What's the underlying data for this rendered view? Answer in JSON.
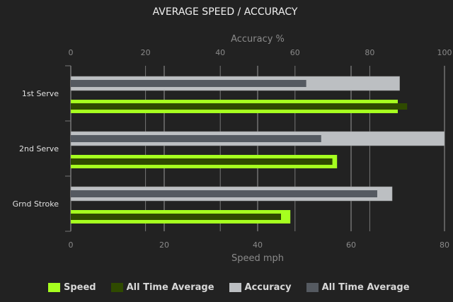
{
  "chart_data": {
    "type": "bar",
    "orientation": "horizontal",
    "title": "AVERAGE SPEED / ACCURACY",
    "categories": [
      "1st Serve",
      "2nd Serve",
      "Grnd Stroke"
    ],
    "top_axis": {
      "label": "Accuracy %",
      "range": [
        0,
        100
      ],
      "ticks": [
        "0",
        "20",
        "40",
        "60",
        "80",
        "100"
      ]
    },
    "bottom_axis": {
      "label": "Speed mph",
      "range": [
        0,
        80
      ],
      "ticks": [
        "0",
        "20",
        "40",
        "60",
        "80"
      ]
    },
    "grid": true,
    "legend_position": "bottom",
    "series": [
      {
        "name": "Speed",
        "axis": "bottom",
        "color": "#a6ff1f",
        "values": [
          70,
          57,
          47
        ]
      },
      {
        "name": "All Time Average",
        "axis": "bottom",
        "color": "#2f4a00",
        "values": [
          72,
          56,
          45
        ]
      },
      {
        "name": "Accuracy",
        "axis": "top",
        "color": "#bcbfc2",
        "values": [
          88,
          100,
          86
        ]
      },
      {
        "name": "All Time Average",
        "axis": "top",
        "color": "#555a61",
        "values": [
          63,
          67,
          82
        ]
      }
    ]
  }
}
